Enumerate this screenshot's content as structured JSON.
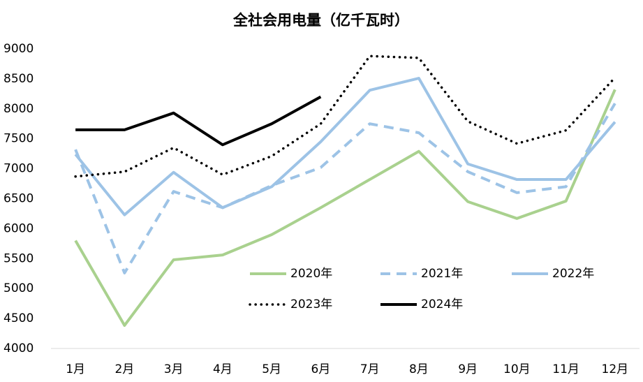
{
  "chart_data": {
    "type": "line",
    "title": "全社会用电量（亿千瓦时）",
    "categories": [
      "1月",
      "2月",
      "3月",
      "4月",
      "5月",
      "6月",
      "7月",
      "8月",
      "9月",
      "10月",
      "11月",
      "12月"
    ],
    "series": [
      {
        "name": "2020年",
        "color": "#a9d18e",
        "dash": "solid",
        "values": [
          5800,
          4385,
          5480,
          5560,
          5900,
          6350,
          6820,
          7290,
          6450,
          6170,
          6460,
          8320
        ]
      },
      {
        "name": "2021年",
        "color": "#9dc3e6",
        "dash": "dashed",
        "values": [
          7320,
          5260,
          6620,
          6350,
          6720,
          7020,
          7750,
          7600,
          6950,
          6600,
          6700,
          8090
        ]
      },
      {
        "name": "2022年",
        "color": "#9dc3e6",
        "dash": "solid",
        "values": [
          7240,
          6230,
          6940,
          6350,
          6700,
          7450,
          8310,
          8510,
          7080,
          6820,
          6820,
          7780
        ]
      },
      {
        "name": "2023年",
        "color": "#000000",
        "dash": "dotted",
        "values": [
          6870,
          6950,
          7350,
          6900,
          7210,
          7750,
          8880,
          8850,
          7790,
          7420,
          7640,
          8520
        ]
      },
      {
        "name": "2024年",
        "color": "#000000",
        "dash": "solid",
        "values": [
          7650,
          7650,
          7930,
          7400,
          7750,
          8200,
          null,
          null,
          null,
          null,
          null,
          null
        ]
      }
    ],
    "ylim": [
      4000,
      9000
    ],
    "yticks": [
      4000,
      4500,
      5000,
      5500,
      6000,
      6500,
      7000,
      7500,
      8000,
      8500,
      9000
    ],
    "grid": false,
    "legend": "inside"
  }
}
